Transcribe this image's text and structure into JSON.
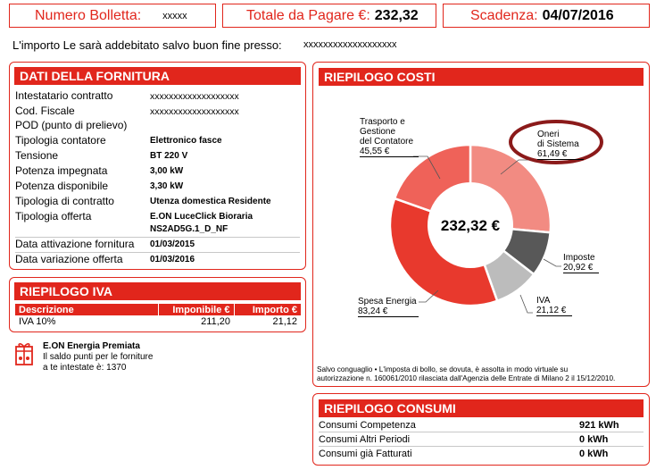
{
  "header": {
    "bill_number_label": "Numero Bolletta:",
    "bill_number_value": "xxxxx",
    "total_label": "Totale da Pagare €:",
    "total_value": "232,32",
    "due_label": "Scadenza:",
    "due_value": "04/07/2016"
  },
  "notice": {
    "text": "L'importo Le sarà addebitato salvo buon fine presso:",
    "value": "xxxxxxxxxxxxxxxxxxx"
  },
  "fornitura": {
    "title": "DATI DELLA FORNITURA",
    "rows": [
      {
        "label": "Intestatario contratto",
        "value": "xxxxxxxxxxxxxxxxxxx"
      },
      {
        "label": "Cod. Fiscale",
        "value": "xxxxxxxxxxxxxxxxxxx"
      },
      {
        "label": "POD (punto di prelievo)",
        "value": ""
      },
      {
        "label": "Tipologia contatore",
        "value": "Elettronico fasce"
      },
      {
        "label": "Tensione",
        "value": "BT 220 V"
      },
      {
        "label": "Potenza impegnata",
        "value": "3,00 kW"
      },
      {
        "label": "Potenza disponibile",
        "value": "3,30 kW"
      },
      {
        "label": "Tipologia di contratto",
        "value": "Utenza domestica Residente"
      },
      {
        "label": "Tipologia offerta",
        "value": "E.ON LuceClick Bioraria",
        "value2": "NS2AD5G.1_D_NF"
      },
      {
        "label": "Data attivazione fornitura",
        "value": "01/03/2015"
      },
      {
        "label": "Data variazione offerta",
        "value": "01/03/2016"
      }
    ]
  },
  "iva": {
    "title": "RIEPILOGO IVA",
    "columns": [
      "Descrizione",
      "Imponibile €",
      "Importo €"
    ],
    "rows": [
      {
        "descrizione": "IVA 10%",
        "imponibile": "211,20",
        "importo": "21,12"
      }
    ]
  },
  "eon_premiata": {
    "title": "E.ON Energia Premiata",
    "line1": "Il saldo punti per le forniture",
    "line2": "a te intestate è: 1370"
  },
  "costi": {
    "title": "RIEPILOGO COSTI",
    "total": "232,32 €",
    "labels": {
      "trasporto_1": "Trasporto e",
      "trasporto_2": "Gestione",
      "trasporto_3": "del Contatore",
      "trasporto_v": "45,55 €",
      "oneri_1": "Oneri",
      "oneri_2": "di Sistema",
      "oneri_v": "61,49 €",
      "imposte_1": "Imposte",
      "imposte_v": "20,92 €",
      "iva_1": "IVA",
      "iva_v": "21,12 €",
      "spesa_1": "Spesa Energia",
      "spesa_v": "83,24 €"
    },
    "note_1": "Salvo conguaglio • L'imposta di bollo, se dovuta, è assolta in modo virtuale su",
    "note_2": "autorizzazione n. 160061/2010 rilasciata dall'Agenzia delle Entrate di Milano 2 il 15/12/2010."
  },
  "chart_data": {
    "type": "pie",
    "categories": [
      "Oneri di Sistema",
      "Imposte",
      "IVA",
      "Spesa Energia",
      "Trasporto e Gestione del Contatore"
    ],
    "values": [
      61.49,
      20.92,
      21.12,
      83.24,
      45.55
    ],
    "colors": [
      "#f28b82",
      "#585858",
      "#bcbcbc",
      "#e8392d",
      "#ef6259"
    ],
    "total": 232.32,
    "unit": "€"
  },
  "consumi": {
    "title": "RIEPILOGO CONSUMI",
    "rows": [
      {
        "label": "Consumi Competenza",
        "value": "921 kWh"
      },
      {
        "label": "Consumi Altri Periodi",
        "value": "0 kWh"
      },
      {
        "label": "Consumi già Fatturati",
        "value": "0 kWh"
      }
    ]
  },
  "highlight_color": "#8b1a1a",
  "accent_color": "#e1261c"
}
